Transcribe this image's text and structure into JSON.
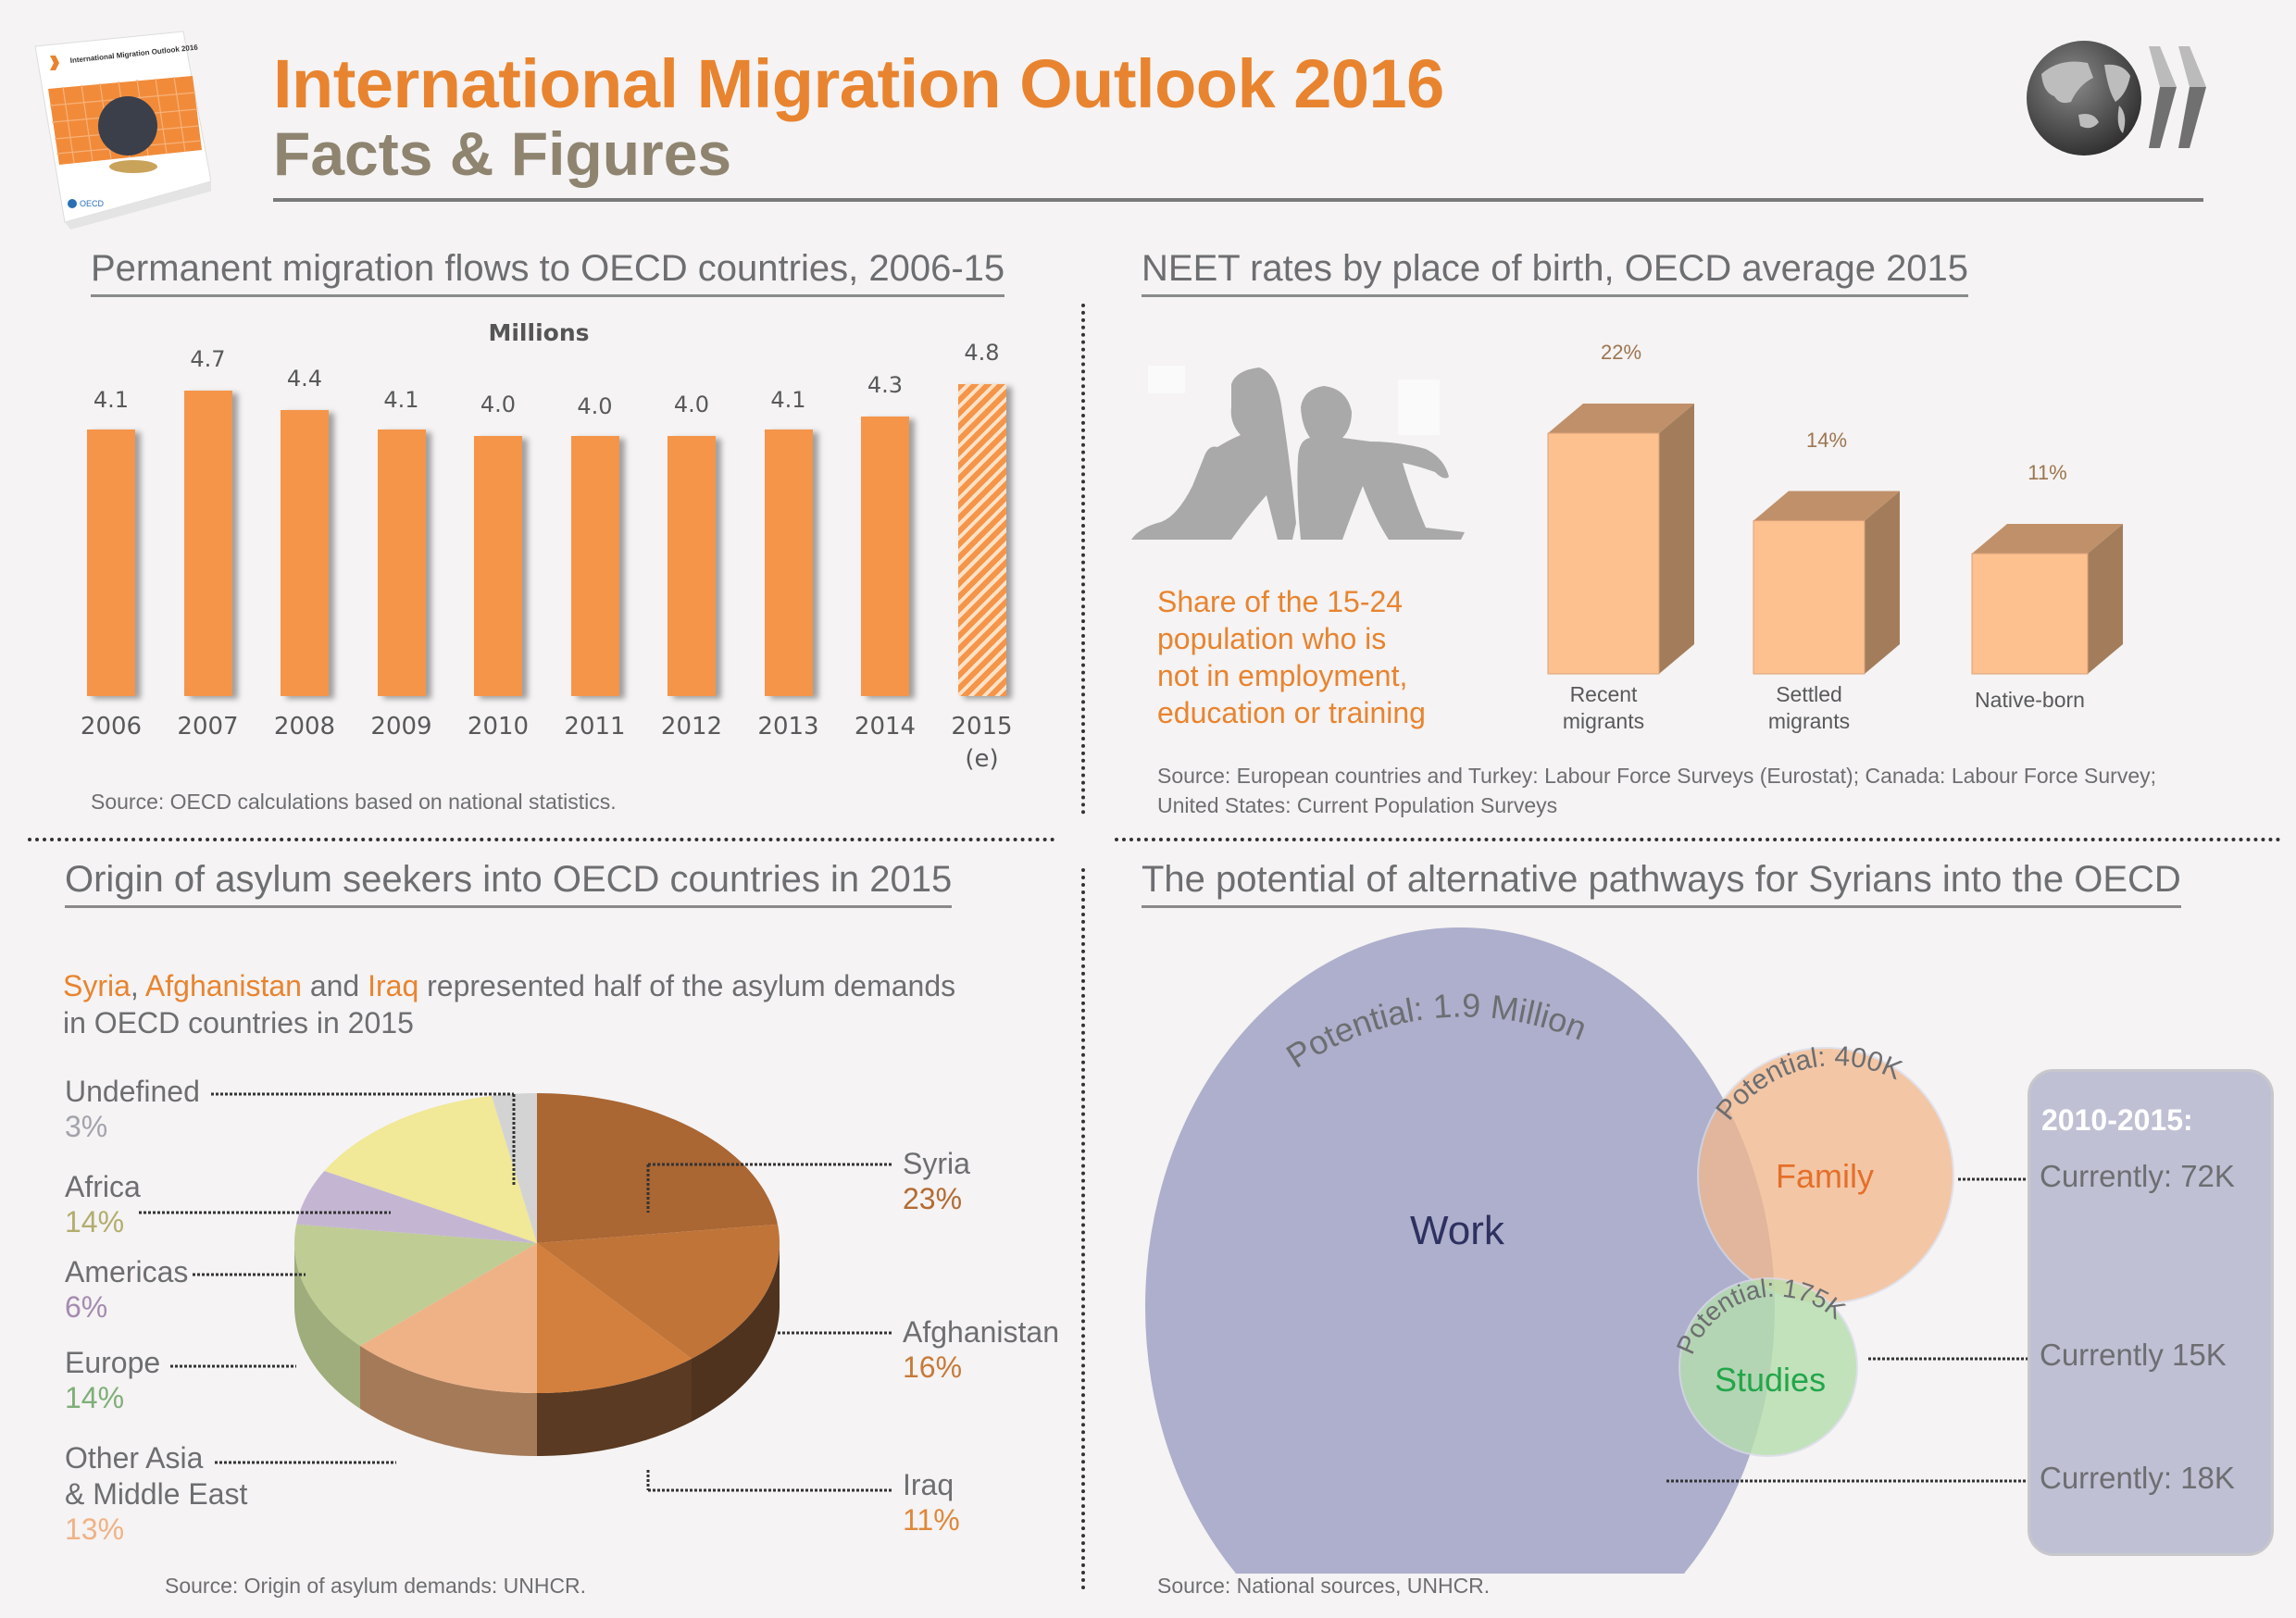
{
  "header": {
    "title": "International Migration Outlook 2016",
    "subtitle": "Facts & Figures",
    "cover_title": "International Migration Outlook 2016",
    "cover_publisher": "OECD",
    "logo": "oecd-globe-logo-icon"
  },
  "colors": {
    "accent_orange": "#e8842f",
    "subtitle_taupe": "#8e8470",
    "bar_orange": "#f5954a",
    "neet_front": "#fdc08f",
    "neet_top": "#c0906a",
    "neet_side": "#a37d5b",
    "venn_work": "#a9abc9",
    "venn_family": "#f3c19b",
    "venn_studies": "#b5dab0",
    "panel_bg": "#bfc0d4"
  },
  "flows": {
    "title": "Permanent migration flows to OECD countries, 2006-15",
    "source": "Source: OECD calculations based on national statistics."
  },
  "neet": {
    "title": "NEET rates by place of birth, OECD average 2015",
    "description": [
      "Share of the 15-24",
      "population who is",
      "not in employment,",
      "education or training"
    ],
    "illustration": "sitting-people-silhouette-icon",
    "source": [
      "Source: European countries and Turkey: Labour Force Surveys (Eurostat); Canada: Labour Force Survey;",
      "United States: Current Population Surveys"
    ]
  },
  "asylum": {
    "title": "Origin of asylum seekers into OECD countries in 2015",
    "intro": {
      "highlight_1": "Syria",
      "sep_1": ", ",
      "highlight_2": "Afghanistan",
      "sep_2": " and ",
      "highlight_3": "Iraq",
      "rest_line1": " represented half of the asylum demands",
      "line2": "in OECD countries in 2015"
    },
    "source": "Source: Origin of asylum demands: UNHCR."
  },
  "pathways": {
    "title": "The potential of alternative pathways for Syrians into the OECD",
    "circles": [
      {
        "name": "Work",
        "potential_label": "Potential: 1.9 Million",
        "potential_value": 1900000,
        "current_label": "Currently: 18K",
        "current_value": 18000,
        "label_color": "#2e3160"
      },
      {
        "name": "Family",
        "potential_label": "Potential: 400K",
        "potential_value": 400000,
        "current_label": "Currently: 72K",
        "current_value": 72000,
        "label_color": "#e56f2a"
      },
      {
        "name": "Studies",
        "potential_label": "Potential: 175K",
        "potential_value": 175000,
        "current_label": "Currently 15K",
        "current_value": 15000,
        "label_color": "#22a64a"
      }
    ],
    "panel_title": "2010-2015:",
    "source": "Source: National sources, UNHCR."
  },
  "chart_data": [
    {
      "type": "bar",
      "title": "Permanent migration flows to OECD countries, 2006-15",
      "ylabel": "Millions",
      "xlabel": "",
      "categories": [
        "2006",
        "2007",
        "2008",
        "2009",
        "2010",
        "2011",
        "2012",
        "2013",
        "2014",
        "2015 (e)"
      ],
      "category_lines": [
        [
          "2006"
        ],
        [
          "2007"
        ],
        [
          "2008"
        ],
        [
          "2009"
        ],
        [
          "2010"
        ],
        [
          "2011"
        ],
        [
          "2012"
        ],
        [
          "2013"
        ],
        [
          "2014"
        ],
        [
          "2015",
          "(e)"
        ]
      ],
      "values": [
        4.1,
        4.7,
        4.4,
        4.1,
        4.0,
        4.0,
        4.0,
        4.1,
        4.3,
        4.8
      ],
      "value_labels": [
        "4.1",
        "4.7",
        "4.4",
        "4.1",
        "4.0",
        "4.0",
        "4.0",
        "4.1",
        "4.3",
        "4.8"
      ],
      "estimated": [
        false,
        false,
        false,
        false,
        false,
        false,
        false,
        false,
        false,
        true
      ],
      "grid": false,
      "legend": "none"
    },
    {
      "type": "bar",
      "style": "3d",
      "title": "NEET rates by place of birth, OECD average 2015",
      "categories": [
        "Recent migrants",
        "Settled migrants",
        "Native-born"
      ],
      "category_lines": [
        [
          "Recent",
          "migrants"
        ],
        [
          "Settled",
          "migrants"
        ],
        [
          "Native-born"
        ]
      ],
      "values": [
        22,
        14,
        11
      ],
      "value_labels": [
        "22%",
        "14%",
        "11%"
      ],
      "unit": "%",
      "grid": false,
      "legend": "none"
    },
    {
      "type": "pie",
      "style": "3d",
      "title": "Origin of asylum seekers into OECD countries in 2015",
      "slices": [
        {
          "label": "Syria",
          "label_lines": [
            "Syria"
          ],
          "value": 23,
          "pct": "23%",
          "color": "#aa6633",
          "side_color": "#6e4020",
          "pct_color": "#b36b34",
          "side": "right"
        },
        {
          "label": "Afghanistan",
          "label_lines": [
            "Afghanistan"
          ],
          "value": 16,
          "pct": "16%",
          "color": "#c07438",
          "side_color": "#4f331f",
          "pct_color": "#c77a3a",
          "side": "right"
        },
        {
          "label": "Iraq",
          "label_lines": [
            "Iraq"
          ],
          "value": 11,
          "pct": "11%",
          "color": "#d37f3d",
          "side_color": "#5a3a22",
          "pct_color": "#e0873a",
          "side": "right"
        },
        {
          "label": "Other Asia & Middle East",
          "label_lines": [
            "Other Asia",
            "& Middle East"
          ],
          "value": 13,
          "pct": "13%",
          "color": "#efb287",
          "side_color": "#a57a58",
          "pct_color": "#efb285",
          "side": "left"
        },
        {
          "label": "Europe",
          "label_lines": [
            "Europe"
          ],
          "value": 14,
          "pct": "14%",
          "color": "#bfcc94",
          "side_color": "#9fac7c",
          "pct_color": "#7fae78",
          "side": "left"
        },
        {
          "label": "Americas",
          "label_lines": [
            "Americas"
          ],
          "value": 6,
          "pct": "6%",
          "color": "#c4b6d2",
          "side_color": "#9f93ad",
          "pct_color": "#a58bb0",
          "side": "left"
        },
        {
          "label": "Africa",
          "label_lines": [
            "Africa"
          ],
          "value": 14,
          "pct": "14%",
          "color": "#f1e898",
          "side_color": "#c6bd77",
          "pct_color": "#b2ad6e",
          "side": "left"
        },
        {
          "label": "Undefined",
          "label_lines": [
            "Undefined"
          ],
          "value": 3,
          "pct": "3%",
          "color": "#d4d3d3",
          "side_color": "#aaaaaa",
          "pct_color": "#a3a3ad",
          "side": "left"
        }
      ],
      "legend": "callouts"
    }
  ]
}
